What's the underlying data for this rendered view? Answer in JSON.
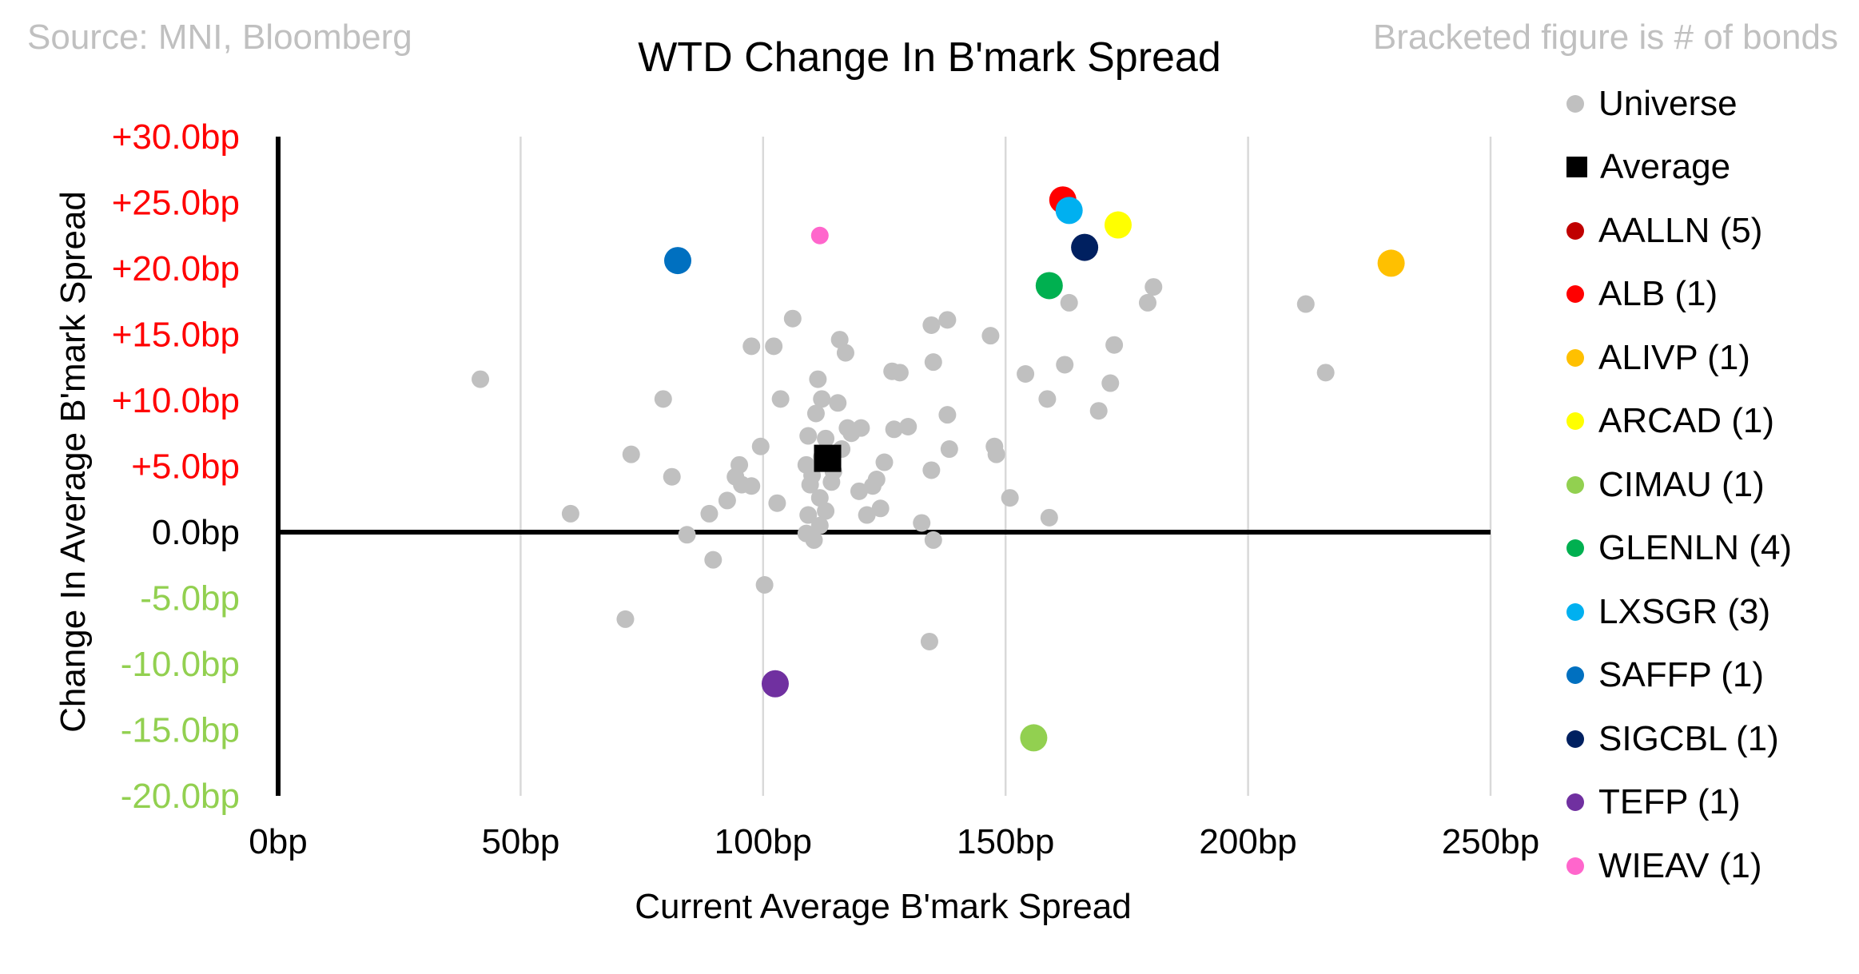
{
  "source_note": "Source: MNI, Bloomberg",
  "bracket_note": "Bracketed figure is # of bonds",
  "chart_data": {
    "type": "scatter",
    "title": "WTD Change In B'mark Spread",
    "xlabel": "Current Average B'mark Spread",
    "ylabel": "Change In Average B'mark Spread",
    "xlim": [
      0,
      250
    ],
    "ylim": [
      -20,
      30
    ],
    "x_ticks": [
      0,
      50,
      100,
      150,
      200,
      250
    ],
    "x_tick_labels": [
      "0bp",
      "50bp",
      "100bp",
      "150bp",
      "200bp",
      "250bp"
    ],
    "y_ticks": [
      30,
      25,
      20,
      15,
      10,
      5,
      0,
      -5,
      -10,
      -15,
      -20
    ],
    "y_tick_labels": [
      "+30.0bp",
      "+25.0bp",
      "+20.0bp",
      "+15.0bp",
      "+10.0bp",
      "+5.0bp",
      "0.0bp",
      "-5.0bp",
      "-10.0bp",
      "-15.0bp",
      "-20.0bp"
    ],
    "y_tick_colors": {
      "positive": "#ff0000",
      "zero": "#000000",
      "negative": "#92d050"
    },
    "grid": "vertical",
    "legend_position": "right",
    "series": [
      {
        "name": "Universe",
        "legend_label": "Universe",
        "color": "#c0c0c0",
        "marker": "circle-small",
        "points": [
          [
            41.7,
            11.6
          ],
          [
            60.3,
            1.4
          ],
          [
            71.6,
            -6.6
          ],
          [
            72.8,
            5.9
          ],
          [
            79.4,
            10.1
          ],
          [
            81.2,
            4.2
          ],
          [
            84.3,
            -0.2
          ],
          [
            88.9,
            1.4
          ],
          [
            89.7,
            -2.1
          ],
          [
            92.6,
            2.4
          ],
          [
            94.3,
            4.2
          ],
          [
            95.1,
            5.1
          ],
          [
            95.6,
            3.6
          ],
          [
            97.6,
            14.1
          ],
          [
            97.6,
            3.5
          ],
          [
            99.5,
            6.5
          ],
          [
            100.3,
            -4.0
          ],
          [
            102.2,
            14.1
          ],
          [
            102.9,
            2.2
          ],
          [
            103.6,
            10.1
          ],
          [
            106.1,
            16.2
          ],
          [
            108.9,
            5.1
          ],
          [
            108.9,
            -0.1
          ],
          [
            109.3,
            7.3
          ],
          [
            109.3,
            1.3
          ],
          [
            109.7,
            3.6
          ],
          [
            110.1,
            4.3
          ],
          [
            110.5,
            -0.6
          ],
          [
            110.9,
            9.0
          ],
          [
            111.3,
            11.6
          ],
          [
            111.7,
            0.5
          ],
          [
            111.7,
            2.6
          ],
          [
            112.1,
            10.1
          ],
          [
            112.1,
            5.7
          ],
          [
            112.9,
            7.1
          ],
          [
            112.9,
            1.6
          ],
          [
            114.1,
            3.8
          ],
          [
            114.5,
            4.6
          ],
          [
            115.4,
            9.8
          ],
          [
            115.8,
            14.6
          ],
          [
            116.2,
            6.3
          ],
          [
            117.0,
            13.6
          ],
          [
            117.4,
            7.9
          ],
          [
            118.2,
            7.5
          ],
          [
            119.8,
            3.1
          ],
          [
            120.2,
            7.9
          ],
          [
            121.4,
            1.3
          ],
          [
            122.6,
            3.5
          ],
          [
            123.4,
            4.0
          ],
          [
            124.2,
            1.8
          ],
          [
            125.0,
            5.3
          ],
          [
            126.6,
            12.2
          ],
          [
            127.0,
            7.8
          ],
          [
            128.2,
            12.1
          ],
          [
            129.9,
            8.0
          ],
          [
            132.7,
            0.7
          ],
          [
            134.3,
            -8.3
          ],
          [
            134.7,
            15.7
          ],
          [
            134.7,
            4.7
          ],
          [
            135.1,
            -0.6
          ],
          [
            135.1,
            12.9
          ],
          [
            138.0,
            16.1
          ],
          [
            138.0,
            8.9
          ],
          [
            138.4,
            6.3
          ],
          [
            146.9,
            14.9
          ],
          [
            147.7,
            6.5
          ],
          [
            148.1,
            5.9
          ],
          [
            150.9,
            2.6
          ],
          [
            154.1,
            12.0
          ],
          [
            158.6,
            10.1
          ],
          [
            159.0,
            1.1
          ],
          [
            162.2,
            12.7
          ],
          [
            163.1,
            17.4
          ],
          [
            169.2,
            9.2
          ],
          [
            171.6,
            11.3
          ],
          [
            172.4,
            14.2
          ],
          [
            179.3,
            17.4
          ],
          [
            180.5,
            18.6
          ],
          [
            211.9,
            17.3
          ],
          [
            216.0,
            12.1
          ]
        ]
      },
      {
        "name": "Average",
        "legend_label": "Average",
        "color": "#000000",
        "marker": "square",
        "points": [
          [
            113.3,
            5.6
          ]
        ]
      },
      {
        "name": "AALLN",
        "legend_label": "AALLN  (5)",
        "color": "#c00000",
        "marker": "circle",
        "points": []
      },
      {
        "name": "ALB",
        "legend_label": "ALB  (1)",
        "color": "#ff0000",
        "marker": "circle",
        "points": [
          [
            161.8,
            25.2
          ]
        ]
      },
      {
        "name": "ALIVP",
        "legend_label": "ALIVP  (1)",
        "color": "#ffc000",
        "marker": "circle",
        "points": [
          [
            229.5,
            20.4
          ]
        ]
      },
      {
        "name": "ARCAD",
        "legend_label": "ARCAD  (1)",
        "color": "#ffff00",
        "marker": "circle",
        "points": [
          [
            173.2,
            23.3
          ]
        ]
      },
      {
        "name": "CIMAU",
        "legend_label": "CIMAU  (1)",
        "color": "#92d050",
        "marker": "circle",
        "points": [
          [
            155.8,
            -15.6
          ]
        ]
      },
      {
        "name": "GLENLN",
        "legend_label": "GLENLN  (4)",
        "color": "#00b050",
        "marker": "circle",
        "points": [
          [
            159.0,
            18.7
          ]
        ]
      },
      {
        "name": "LXSGR",
        "legend_label": "LXSGR  (3)",
        "color": "#00b0f0",
        "marker": "circle",
        "points": [
          [
            163.1,
            24.4
          ]
        ]
      },
      {
        "name": "SAFFP",
        "legend_label": "SAFFP  (1)",
        "color": "#0070c0",
        "marker": "circle",
        "points": [
          [
            82.4,
            20.6
          ]
        ]
      },
      {
        "name": "SIGCBL",
        "legend_label": "SIGCBL  (1)",
        "color": "#002060",
        "marker": "circle",
        "points": [
          [
            166.3,
            21.6
          ]
        ]
      },
      {
        "name": "TEFP",
        "legend_label": "TEFP  (1)",
        "color": "#7030a0",
        "marker": "circle",
        "points": [
          [
            102.5,
            -11.5
          ]
        ]
      },
      {
        "name": "WIEAV",
        "legend_label": "WIEAV  (1)",
        "color": "#ff66cc",
        "marker": "circle-small",
        "points": [
          [
            111.7,
            22.5
          ]
        ]
      }
    ]
  }
}
